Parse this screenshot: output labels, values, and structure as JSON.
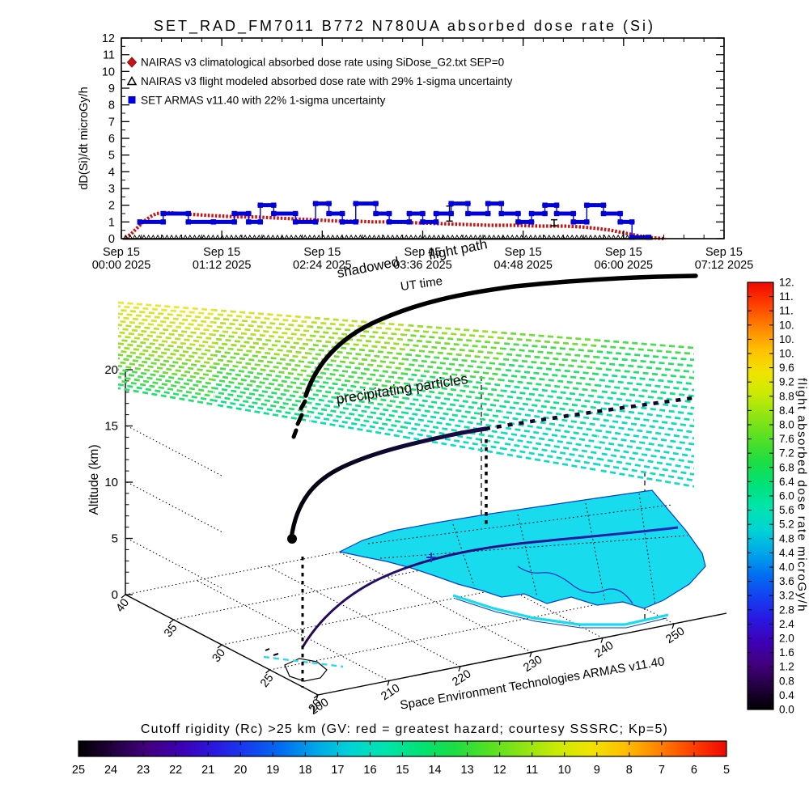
{
  "title": "SET_RAD_FM7011  B772 N780UA absorbed dose rate (Si)",
  "chart_data": [
    {
      "type": "line",
      "title": "SET_RAD_FM7011  B772 N780UA absorbed dose rate (Si)",
      "xlabel": "UT time",
      "ylabel": "dD(Si)/dt microGy/h",
      "ylim": [
        0,
        12
      ],
      "yticks": [
        0,
        1,
        2,
        3,
        4,
        5,
        6,
        7,
        8,
        9,
        10,
        11,
        12
      ],
      "x_hours_lim": [
        0,
        7.2
      ],
      "xtick_hours": [
        0,
        1.2,
        2.4,
        3.6,
        4.8,
        6.0,
        7.2
      ],
      "xtick_labels_line1": [
        "Sep 15",
        "Sep 15",
        "Sep 15",
        "Sep 15",
        "Sep 15",
        "Sep 15",
        "Sep 15"
      ],
      "xtick_labels_line2": [
        "00:00 2025",
        "01:12 2025",
        "02:24 2025",
        "03:36 2025",
        "04:48 2025",
        "06:00 2025",
        "07:12 2025"
      ],
      "legend_position": "top-left",
      "series": [
        {
          "name": "NAIRAS v3 climatological absorbed dose rate using SiDose_G2.txt SEP=0",
          "color": "#cc1111",
          "marker": "diamond",
          "x": [
            0.05,
            0.12,
            0.18,
            0.25,
            0.3,
            0.36,
            0.42,
            0.5,
            0.6,
            0.7,
            0.85,
            1.0,
            1.2,
            1.4,
            1.6,
            1.8,
            2.0,
            2.2,
            2.4,
            2.6,
            2.8,
            3.0,
            3.2,
            3.5,
            3.8,
            4.1,
            4.4,
            4.7,
            5.0,
            5.3,
            5.5,
            5.7,
            5.85,
            6.0,
            6.1,
            6.2,
            6.35,
            6.5
          ],
          "y": [
            0.05,
            0.3,
            0.6,
            0.95,
            1.15,
            1.35,
            1.5,
            1.55,
            1.55,
            1.5,
            1.45,
            1.4,
            1.35,
            1.3,
            1.3,
            1.25,
            1.2,
            1.15,
            1.1,
            1.05,
            1.05,
            1.0,
            1.0,
            0.95,
            0.9,
            0.85,
            0.8,
            0.8,
            0.75,
            0.75,
            0.7,
            0.6,
            0.5,
            0.35,
            0.25,
            0.15,
            0.05,
            0.0
          ]
        },
        {
          "name": "NAIRAS v3 flight modeled absorbed dose rate with 29% 1-sigma uncertainty",
          "color": "#000000",
          "marker": "triangle",
          "baseline_y": 0.06,
          "x_range": [
            0.05,
            6.35
          ],
          "error_points": [
            {
              "x": 3.92,
              "y": 1.5,
              "err": 0.45
            },
            {
              "x": 5.17,
              "y": 0.95,
              "err": 0.18
            }
          ]
        },
        {
          "name": "SET ARMAS v11.40 with 22% 1-sigma uncertainty",
          "color": "#0000dd",
          "marker": "square",
          "err": 0.22,
          "segments": [
            [
              0.22,
              0.5,
              1.0
            ],
            [
              0.5,
              0.8,
              1.5
            ],
            [
              0.8,
              1.1,
              1.0
            ],
            [
              1.1,
              1.35,
              1.0
            ],
            [
              1.35,
              1.52,
              1.5
            ],
            [
              1.52,
              1.66,
              1.0
            ],
            [
              1.66,
              1.82,
              2.0
            ],
            [
              1.82,
              2.08,
              1.5
            ],
            [
              2.08,
              2.32,
              1.0
            ],
            [
              2.32,
              2.48,
              2.1
            ],
            [
              2.48,
              2.64,
              1.5
            ],
            [
              2.64,
              2.8,
              1.0
            ],
            [
              2.8,
              3.04,
              2.1
            ],
            [
              3.04,
              3.2,
              1.5
            ],
            [
              3.2,
              3.44,
              1.0
            ],
            [
              3.44,
              3.6,
              1.5
            ],
            [
              3.6,
              3.76,
              1.0
            ],
            [
              3.76,
              3.94,
              1.5
            ],
            [
              3.94,
              4.14,
              2.1
            ],
            [
              4.14,
              4.38,
              1.5
            ],
            [
              4.38,
              4.54,
              2.1
            ],
            [
              4.54,
              4.74,
              1.5
            ],
            [
              4.74,
              4.9,
              1.0
            ],
            [
              4.9,
              5.06,
              1.5
            ],
            [
              5.06,
              5.2,
              2.0
            ],
            [
              5.2,
              5.4,
              1.5
            ],
            [
              5.4,
              5.56,
              1.0
            ],
            [
              5.56,
              5.76,
              2.0
            ],
            [
              5.76,
              5.96,
              1.5
            ],
            [
              5.96,
              6.1,
              1.0
            ],
            [
              6.1,
              6.3,
              0.08
            ]
          ]
        }
      ]
    },
    {
      "type": "scatter3d",
      "description": "Flight path altitude vs latitude/longitude with precipitating particle layer and cutoff-rigidity ground map",
      "lon_ticks": [
        200,
        210,
        220,
        230,
        240,
        250
      ],
      "lat_ticks": [
        40,
        35,
        30,
        25,
        20
      ],
      "zlabel": "Altitude (km)",
      "z_ticks": [
        0,
        5,
        10,
        15,
        20
      ],
      "annotations": [
        "flight path",
        "shadowed",
        "precipitating particles",
        "Space Environment Technologies ARMAS v11.40"
      ],
      "flight": {
        "origin_lonlat": [
          202,
          21
        ],
        "cruise_altitude_km": 11,
        "path_colored_by": "flight absorbed dose rate microGy/h"
      }
    }
  ],
  "scene3d": {
    "altitude_label": "Altitude (km)",
    "alt_ticks": [
      "20",
      "15",
      "10",
      "5",
      "0"
    ],
    "lat_ticks": [
      "40",
      "35",
      "30",
      "25",
      "20"
    ],
    "lon_ticks": [
      "200",
      "210",
      "220",
      "230",
      "240",
      "250"
    ],
    "label_flight_path": "flight path",
    "label_shadowed": "shadowed",
    "label_particles": "precipitating particles",
    "label_ut_time": "UT time",
    "credit": "Space Environment Technologies ARMAS v11.40",
    "map_color": "#19dbee"
  },
  "right_colorbar": {
    "title": "flight absorbed dose rate microGy/h",
    "tick_labels": [
      "12.",
      "11.",
      "11.",
      "10.",
      "10.",
      "10.",
      "9.6",
      "9.2",
      "8.8",
      "8.4",
      "8.0",
      "7.6",
      "7.2",
      "6.8",
      "6.4",
      "6.0",
      "5.6",
      "5.2",
      "4.8",
      "4.4",
      "4.0",
      "3.6",
      "3.2",
      "2.8",
      "2.4",
      "2.0",
      "1.6",
      "1.2",
      "0.8",
      "0.4",
      "0.0"
    ]
  },
  "bottom_colorbar": {
    "title": "Cutoff rigidity (Rc) >25 km (GV: red = greatest hazard; courtesy SSSRC; Kp=5)",
    "tick_labels": [
      "25",
      "24",
      "23",
      "22",
      "21",
      "20",
      "19",
      "18",
      "17",
      "16",
      "15",
      "14",
      "13",
      "12",
      "11",
      "10",
      "9",
      "8",
      "7",
      "6",
      "5"
    ]
  },
  "colormap": [
    "#000000",
    "#22003e",
    "#42007c",
    "#3c00b4",
    "#2a18e0",
    "#1440f0",
    "#0070f0",
    "#00a8e8",
    "#00d4d4",
    "#00e4ac",
    "#00e278",
    "#1ade44",
    "#52e024",
    "#8ce414",
    "#c8ea04",
    "#f0e400",
    "#ffc000",
    "#ff8400",
    "#ff4000",
    "#ee0800"
  ],
  "particle_palette": [
    "#e9e72f",
    "#d4e42a",
    "#b8e126",
    "#97de27",
    "#6fdd33",
    "#45de4d",
    "#23e06a",
    "#0ee18c",
    "#07dfae",
    "#0bdcc4"
  ]
}
